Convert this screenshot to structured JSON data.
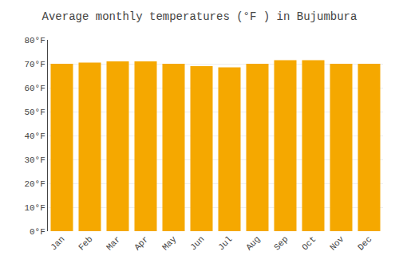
{
  "chart_data": {
    "type": "bar",
    "title": "Average monthly temperatures (°F ) in Bujumbura",
    "categories": [
      "Jan",
      "Feb",
      "Mar",
      "Apr",
      "May",
      "Jun",
      "Jul",
      "Aug",
      "Sep",
      "Oct",
      "Nov",
      "Dec"
    ],
    "values": [
      70.0,
      70.5,
      71.0,
      71.0,
      70.0,
      69.0,
      68.5,
      70.0,
      71.5,
      71.5,
      70.0,
      70.0
    ],
    "color": "#F5A800",
    "ylim": [
      0,
      80
    ],
    "yticks": [
      {
        "value": 0,
        "label": "0°F"
      },
      {
        "value": 10,
        "label": "10°F"
      },
      {
        "value": 20,
        "label": "20°F"
      },
      {
        "value": 30,
        "label": "30°F"
      },
      {
        "value": 40,
        "label": "40°F"
      },
      {
        "value": 50,
        "label": "50°F"
      },
      {
        "value": 60,
        "label": "60°F"
      },
      {
        "value": 70,
        "label": "70°F"
      },
      {
        "value": 80,
        "label": "80°F"
      }
    ],
    "grid": true
  }
}
